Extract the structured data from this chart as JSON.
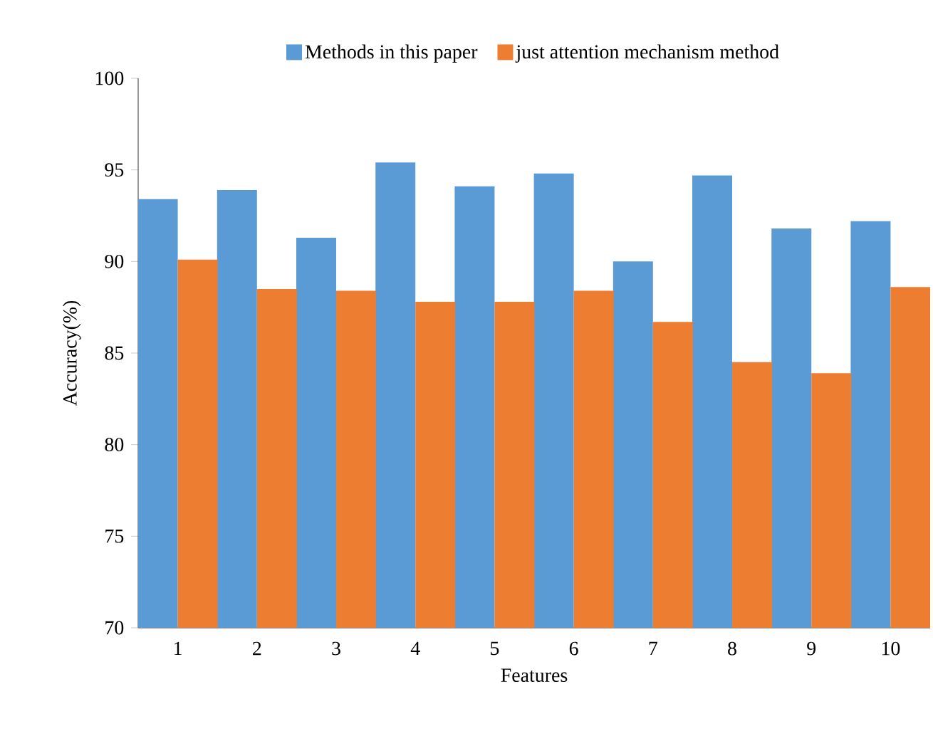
{
  "chart_data": {
    "type": "bar",
    "xlabel": "Features",
    "ylabel": "Accuracy(%)",
    "categories": [
      "1",
      "2",
      "3",
      "4",
      "5",
      "6",
      "7",
      "8",
      "9",
      "10"
    ],
    "ylim": [
      70,
      100
    ],
    "yticks": [
      70,
      75,
      80,
      85,
      90,
      95,
      100
    ],
    "legend": "top",
    "grid": false,
    "series": [
      {
        "name": "Methods in this paper",
        "color": "#5b9bd5",
        "values": [
          93.4,
          93.9,
          91.3,
          95.4,
          94.1,
          94.8,
          90.0,
          94.7,
          91.8,
          92.2
        ]
      },
      {
        "name": "just attention mechanism method",
        "color": "#ed7d31",
        "values": [
          90.1,
          88.5,
          88.4,
          87.8,
          87.8,
          88.4,
          86.7,
          84.5,
          83.9,
          88.6
        ]
      }
    ]
  }
}
